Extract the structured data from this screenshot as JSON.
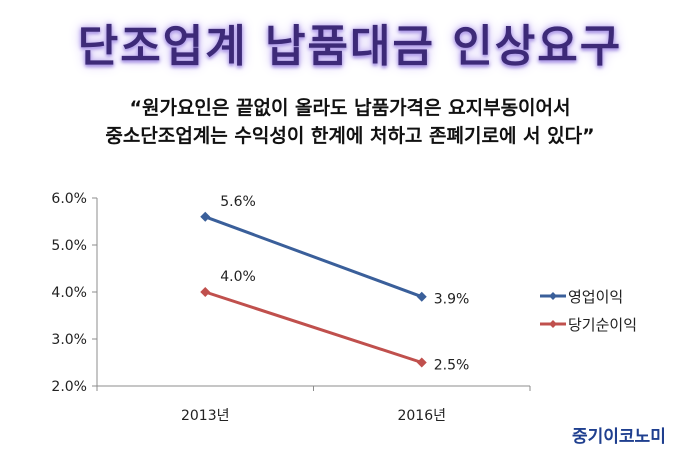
{
  "header": {
    "title": "단조업계 납품대금 인상요구",
    "quote_line1": "“원가요인은 끝없이 올라도 납품가격은 요지부동이어서",
    "quote_line2": "중소단조업계는 수익성이 한계에 처하고 존폐기로에 서 있다”"
  },
  "chart_data": {
    "type": "line",
    "categories": [
      "2013년",
      "2016년"
    ],
    "series": [
      {
        "name": "영업이익",
        "values": [
          5.6,
          3.9
        ],
        "labels": [
          "5.6%",
          "3.9%"
        ],
        "color": "#3a5f9a"
      },
      {
        "name": "당기순이익",
        "values": [
          4.0,
          2.5
        ],
        "labels": [
          "4.0%",
          "2.5%"
        ],
        "color": "#c0504d"
      }
    ],
    "y_ticks": [
      "2.0%",
      "3.0%",
      "4.0%",
      "5.0%",
      "6.0%"
    ],
    "ylim": [
      2.0,
      6.0
    ],
    "grid": false,
    "legend_position": "right"
  },
  "footer": {
    "brand": "중기이코노미"
  }
}
